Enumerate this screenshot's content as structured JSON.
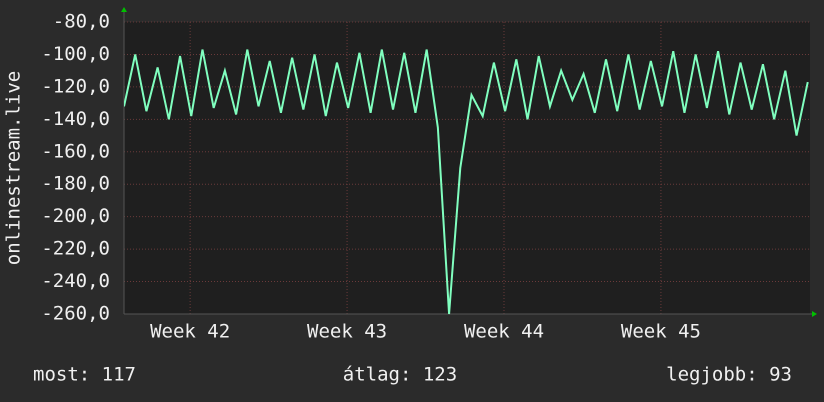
{
  "chart_data": {
    "type": "line",
    "y_label": "onlinestream.live",
    "x": [
      0,
      0.5,
      1,
      1.5,
      2,
      2.5,
      3,
      3.5,
      4,
      4.5,
      5,
      5.5,
      6,
      6.5,
      7,
      7.5,
      8,
      8.5,
      9,
      9.5,
      10,
      10.5,
      11,
      11.5,
      12,
      12.5,
      13,
      13.5,
      14,
      14.5,
      15,
      15.5,
      16,
      16.5,
      17,
      17.5,
      18,
      18.5,
      19,
      19.5,
      20,
      20.5,
      21,
      21.5,
      22,
      22.5,
      23,
      23.5,
      24,
      24.5,
      25,
      25.5,
      26,
      26.5,
      27,
      27.5,
      28,
      28.5,
      29,
      29.5,
      30,
      30.5
    ],
    "series": [
      {
        "color": "#80ffbf",
        "values": [
          -132,
          -100,
          -135,
          -108,
          -140,
          -101,
          -138,
          -97,
          -133,
          -110,
          -137,
          -97,
          -132,
          -104,
          -136,
          -102,
          -134,
          -100,
          -138,
          -105,
          -133,
          -99,
          -136,
          -97,
          -134,
          -99,
          -136,
          -97,
          -145,
          -260,
          -170,
          -125,
          -138,
          -105,
          -135,
          -103,
          -140,
          -101,
          -132,
          -110,
          -128,
          -112,
          -136,
          -103,
          -135,
          -100,
          -134,
          -104,
          -132,
          -98,
          -136,
          -100,
          -133,
          -98,
          -137,
          -105,
          -134,
          -106,
          -140,
          -110,
          -150,
          -117
        ]
      }
    ],
    "xlim": [
      0,
      30.6
    ],
    "xticks": [
      {
        "value": 2.95,
        "label": "Week 42"
      },
      {
        "value": 9.95,
        "label": "Week 43"
      },
      {
        "value": 16.95,
        "label": "Week 44"
      },
      {
        "value": 23.95,
        "label": "Week 45"
      }
    ],
    "ylim": [
      -260,
      -80
    ],
    "yticks": [
      {
        "value": -80,
        "label": "-80,0"
      },
      {
        "value": -100,
        "label": "-100,0"
      },
      {
        "value": -120,
        "label": "-120,0"
      },
      {
        "value": -140,
        "label": "-140,0"
      },
      {
        "value": -160,
        "label": "-160,0"
      },
      {
        "value": -180,
        "label": "-180,0"
      },
      {
        "value": -200,
        "label": "-200,0"
      },
      {
        "value": -220,
        "label": "-220,0"
      },
      {
        "value": -240,
        "label": "-240,0"
      },
      {
        "value": -260,
        "label": "-260,0"
      }
    ],
    "grid": true,
    "stats": [
      "most: 117",
      "átlag: 123",
      "legjobb: 93"
    ]
  }
}
